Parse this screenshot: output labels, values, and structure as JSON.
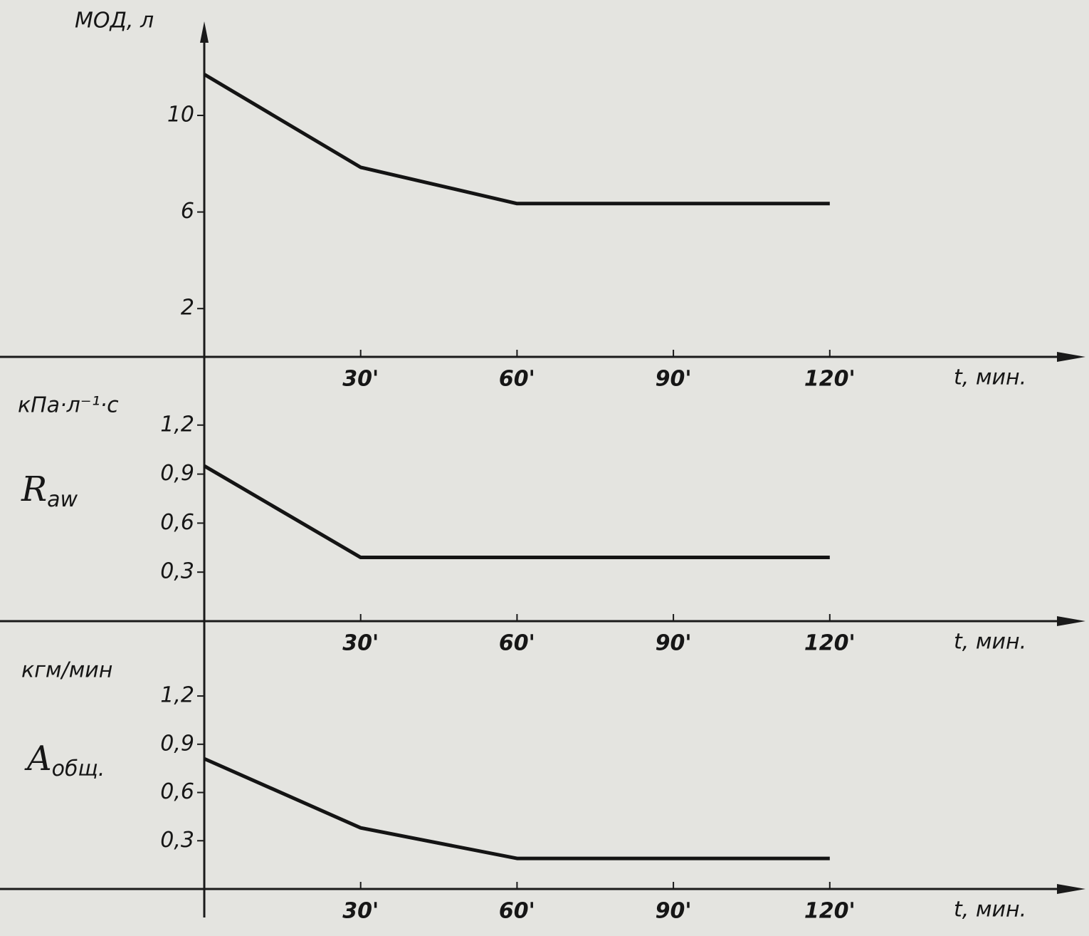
{
  "chart_data": [
    {
      "type": "line",
      "y_label": "МОД, л",
      "x_label": "t, мин.",
      "x": [
        0,
        30,
        60,
        120
      ],
      "values": [
        11.7,
        7.85,
        6.35,
        6.35
      ],
      "color": "#141414",
      "xlim": [
        0,
        167
      ],
      "xticks": [
        {
          "value": 30,
          "label": "30'"
        },
        {
          "value": 60,
          "label": "60'"
        },
        {
          "value": 90,
          "label": "90'"
        },
        {
          "value": 120,
          "label": "120'"
        }
      ],
      "ylim": [
        0,
        13.6
      ],
      "yticks": [
        2,
        6,
        10
      ],
      "grid": false
    },
    {
      "type": "line",
      "y_label": "кПа·л⁻¹·с",
      "x_label": "t, мин.",
      "label_main": "R",
      "label_sub": "aw",
      "x": [
        0,
        30,
        120
      ],
      "values": [
        0.95,
        0.39,
        0.39
      ],
      "color": "#141414",
      "xlim": [
        0,
        167
      ],
      "xticks": [
        {
          "value": 30,
          "label": "30'"
        },
        {
          "value": 60,
          "label": "60'"
        },
        {
          "value": 90,
          "label": "90'"
        },
        {
          "value": 120,
          "label": "120'"
        }
      ],
      "ylim": [
        0,
        1.6
      ],
      "yticks": [
        {
          "value": 0.3,
          "label": "0,3"
        },
        {
          "value": 0.6,
          "label": "0,6"
        },
        {
          "value": 0.9,
          "label": "0,9"
        },
        {
          "value": 1.2,
          "label": "1,2"
        }
      ],
      "grid": false
    },
    {
      "type": "line",
      "y_label": "кгм/мин",
      "x_label": "t, мин.",
      "label_main": "A",
      "label_sub": "общ.",
      "x": [
        0,
        30,
        60,
        120
      ],
      "values": [
        0.81,
        0.38,
        0.19,
        0.19
      ],
      "color": "#141414",
      "xlim": [
        0,
        167
      ],
      "xticks": [
        {
          "value": 30,
          "label": "30'"
        },
        {
          "value": 60,
          "label": "60'"
        },
        {
          "value": 90,
          "label": "90'"
        },
        {
          "value": 120,
          "label": "120'"
        }
      ],
      "ylim": [
        0,
        1.63
      ],
      "yticks": [
        {
          "value": 0.3,
          "label": "0,3"
        },
        {
          "value": 0.6,
          "label": "0,6"
        },
        {
          "value": 0.9,
          "label": "0,9"
        },
        {
          "value": 1.2,
          "label": "1,2"
        }
      ],
      "grid": false
    }
  ]
}
